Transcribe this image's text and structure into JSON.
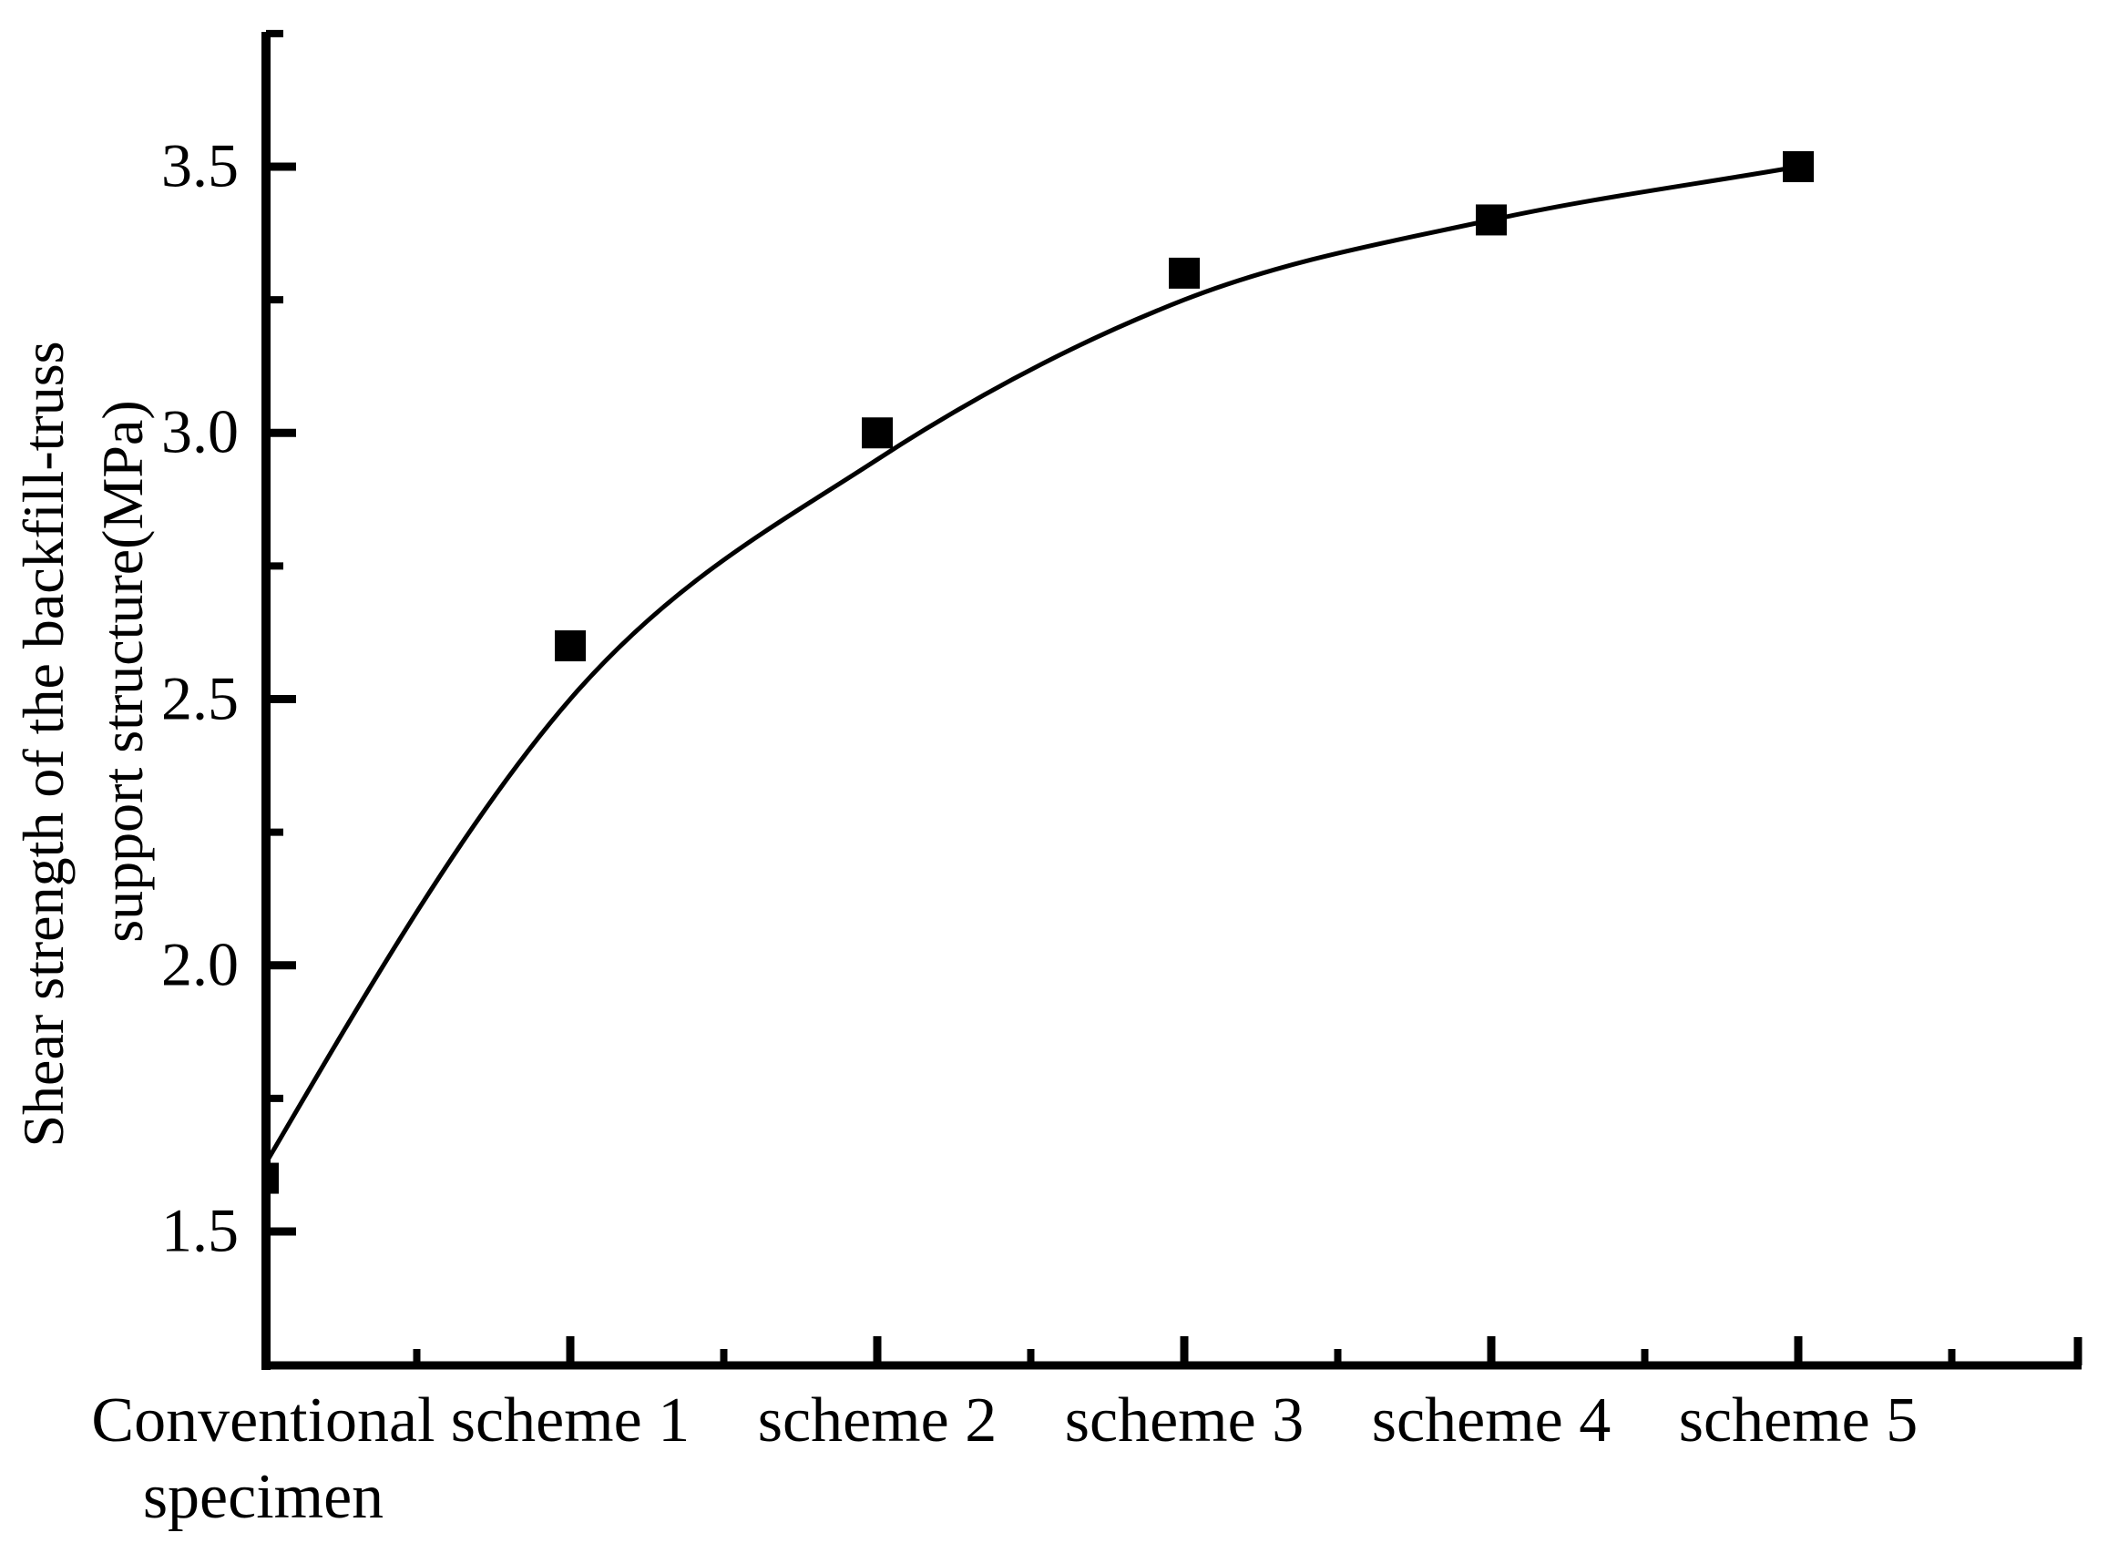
{
  "chart_data": {
    "type": "line",
    "title": "",
    "xlabel": "",
    "ylabel": "Shear strength of the backfill-truss support structure(MPa)",
    "ylabel_lines": [
      "Shear strength of the backfill-truss",
      "support structure(MPa)"
    ],
    "categories": [
      "Conventional specimen",
      "scheme 1",
      "scheme 2",
      "scheme 3",
      "scheme 4",
      "scheme 5"
    ],
    "x_tick_label_lines": [
      [
        "Conventional",
        "specimen"
      ],
      [
        "scheme 1"
      ],
      [
        "scheme 2"
      ],
      [
        "scheme 3"
      ],
      [
        "scheme 4"
      ],
      [
        "scheme 5"
      ]
    ],
    "values": [
      1.6,
      2.6,
      3.0,
      3.3,
      3.4,
      3.5
    ],
    "fit_curve_values": [
      1.62,
      2.5,
      2.95,
      3.25,
      3.4,
      3.5
    ],
    "ylim": [
      1.25,
      3.75
    ],
    "y_major_ticks": [
      3.5,
      3.0,
      2.5,
      2.0,
      1.5
    ],
    "y_tick_labels": [
      "3.5",
      "3.0",
      "2.5",
      "2.0",
      "1.5"
    ],
    "y_minor_ticks": [
      3.75,
      3.25,
      2.75,
      2.25,
      1.75
    ],
    "grid": "off",
    "legend": "none",
    "marker": "filled-square",
    "line_style": "smooth",
    "colors": {
      "line": "#000000",
      "marker": "#000000",
      "axis": "#000000",
      "text": "#000000",
      "background": "#ffffff"
    }
  }
}
